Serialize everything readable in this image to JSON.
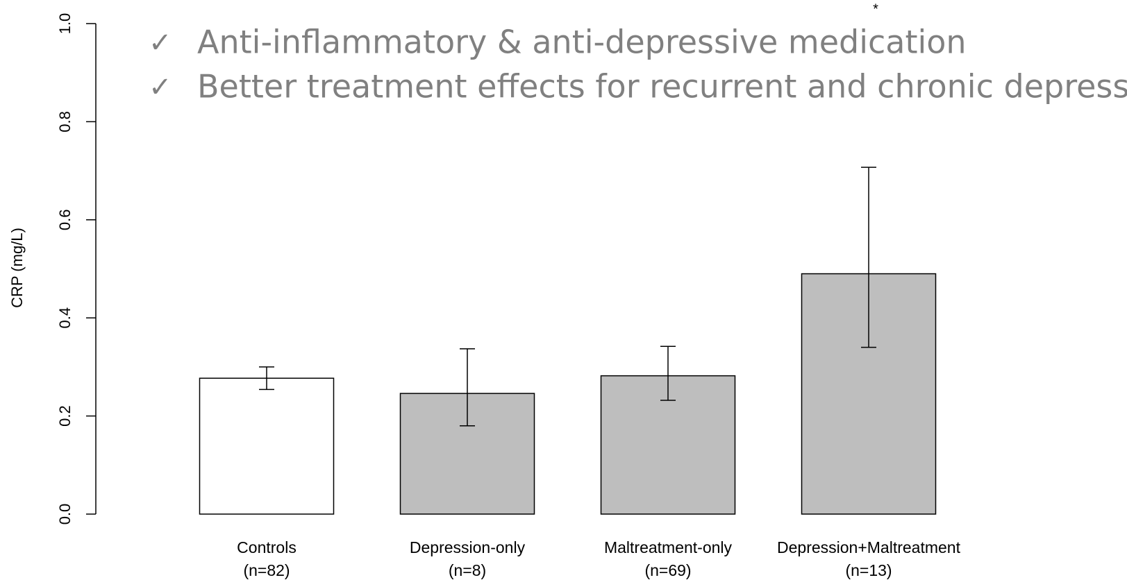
{
  "chart_data": {
    "type": "bar",
    "categories": [
      "Controls",
      "Depression-only",
      "Maltreatment-only",
      "Depression+Maltreatment"
    ],
    "group_sizes": [
      "(n=82)",
      "(n=8)",
      "(n=69)",
      "(n=13)"
    ],
    "values": [
      0.277,
      0.246,
      0.282,
      0.49
    ],
    "ci_low": [
      0.254,
      0.18,
      0.232,
      0.34
    ],
    "ci_high": [
      0.3,
      0.337,
      0.342,
      0.707
    ],
    "colors": [
      "#ffffff",
      "#bebebe",
      "#bebebe",
      "#bebebe"
    ],
    "ylabel": "CRP (mg/L)",
    "ylim": [
      0,
      1
    ],
    "yticks": [
      {
        "value": 0,
        "label": "0.0"
      },
      0.2,
      0.4,
      0.6,
      0.8,
      {
        "value": 1,
        "label": "1.0"
      }
    ],
    "annotation": "*",
    "annotation_category": 3,
    "bullets": [
      "Anti-inflammatory & anti-depressive medication",
      "Better treatment effects for recurrent and chronic depression"
    ],
    "bullet_mark": "✓"
  }
}
